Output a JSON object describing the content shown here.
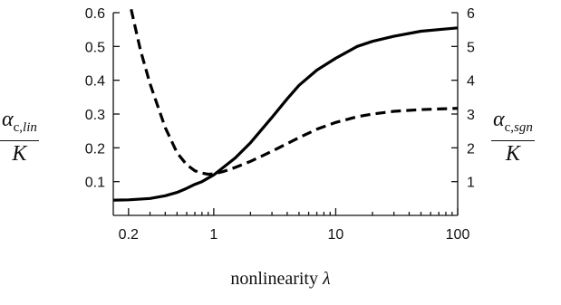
{
  "chart_data": {
    "type": "line",
    "xlabel_text": "nonlinearity",
    "xlabel_symbol": "λ",
    "x_scale": "log",
    "xlim": [
      0.15,
      100
    ],
    "x_ticks": [
      0.2,
      1,
      10,
      100
    ],
    "x_tick_labels": [
      "0.2",
      "1",
      "10",
      "100"
    ],
    "left_axis": {
      "label_num_base": "α",
      "label_num_sub": "c,",
      "label_num_sub_italic": "lin",
      "label_den": "K",
      "ylim": [
        0,
        0.6
      ],
      "ticks": [
        0.1,
        0.2,
        0.3,
        0.4,
        0.5,
        0.6
      ],
      "tick_labels": [
        "0.1",
        "0.2",
        "0.3",
        "0.4",
        "0.5",
        "0.6"
      ]
    },
    "right_axis": {
      "label_num_base": "α",
      "label_num_sub": "c,",
      "label_num_sub_italic": "sgn",
      "label_den": "K",
      "ylim": [
        0,
        6
      ],
      "ticks": [
        1,
        2,
        3,
        4,
        5,
        6
      ],
      "tick_labels": [
        "1",
        "2",
        "3",
        "4",
        "5",
        "6"
      ]
    },
    "series": [
      {
        "style": "solid",
        "axis": "left",
        "x": [
          0.15,
          0.2,
          0.3,
          0.4,
          0.5,
          0.6,
          0.7,
          0.8,
          1,
          1.5,
          2,
          3,
          4,
          5,
          7,
          10,
          15,
          20,
          30,
          50,
          70,
          100
        ],
        "y": [
          0.045,
          0.046,
          0.05,
          0.058,
          0.068,
          0.08,
          0.092,
          0.1,
          0.12,
          0.17,
          0.215,
          0.29,
          0.345,
          0.385,
          0.43,
          0.465,
          0.5,
          0.515,
          0.53,
          0.545,
          0.55,
          0.555
        ]
      },
      {
        "style": "dashed",
        "axis": "right",
        "x": [
          0.21,
          0.25,
          0.3,
          0.35,
          0.4,
          0.5,
          0.6,
          0.7,
          0.8,
          0.9,
          1,
          1.2,
          1.5,
          2,
          3,
          5,
          7,
          10,
          15,
          20,
          30,
          50,
          70,
          100
        ],
        "y": [
          6.1,
          4.9,
          3.9,
          3.2,
          2.6,
          1.85,
          1.5,
          1.32,
          1.25,
          1.22,
          1.23,
          1.3,
          1.42,
          1.6,
          1.9,
          2.3,
          2.55,
          2.75,
          2.92,
          3.0,
          3.08,
          3.13,
          3.15,
          3.17
        ]
      }
    ]
  }
}
